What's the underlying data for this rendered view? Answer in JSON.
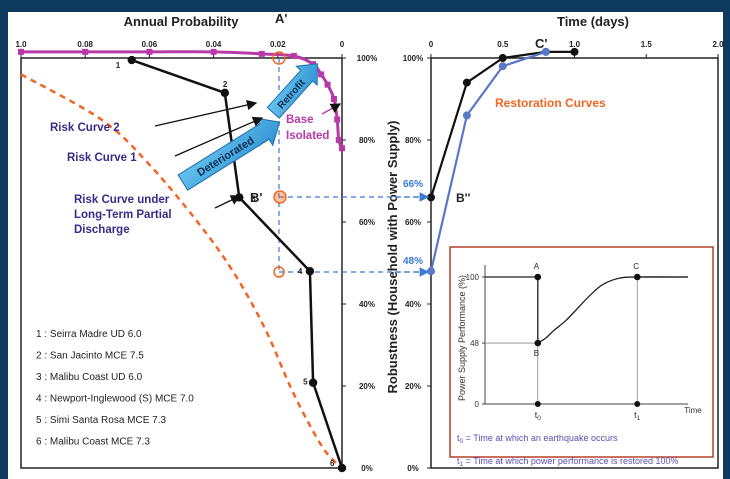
{
  "chart_data": [
    {
      "type": "line",
      "title": "Annual Probability",
      "xlabel": "Annual Probability",
      "ylabel": "Robustness (Household with Power Supply)",
      "x_reversed": true,
      "xlim": [
        0.1,
        0.0
      ],
      "ylim": [
        0,
        100
      ],
      "x_ticks": [
        "1.0",
        "0.08",
        "0.06",
        "0.04",
        "0.02",
        "0"
      ],
      "y_ticks": [
        "0%",
        "20%",
        "40%",
        "60%",
        "80%",
        "100%"
      ],
      "series": [
        {
          "name": "Risk Curve 1",
          "color": "#111111",
          "style": "solid",
          "points": [
            {
              "x": 0.0655,
              "y": 99.5,
              "label": "1"
            },
            {
              "x": 0.0365,
              "y": 91.5,
              "label": "2"
            },
            {
              "x": 0.032,
              "y": 66.0,
              "label": "3"
            },
            {
              "x": 0.01,
              "y": 48.0,
              "label": "4"
            },
            {
              "x": 0.009,
              "y": 20.8,
              "label": "5"
            },
            {
              "x": 0.0,
              "y": 0.0,
              "label": "6"
            }
          ]
        },
        {
          "name": "Risk Curve under Long-Term Partial Discharge",
          "color": "#f26522",
          "style": "dashed",
          "points": [
            {
              "x": 0.1,
              "y": 96.0
            },
            {
              "x": 0.075,
              "y": 85.0
            },
            {
              "x": 0.06,
              "y": 74.0
            },
            {
              "x": 0.045,
              "y": 60.0
            },
            {
              "x": 0.034,
              "y": 48.0
            },
            {
              "x": 0.024,
              "y": 34.0
            },
            {
              "x": 0.015,
              "y": 18.0
            },
            {
              "x": 0.006,
              "y": 5.0
            },
            {
              "x": 0.0,
              "y": 0.0
            }
          ]
        },
        {
          "name": "Base Isolated",
          "color": "#b83aa8",
          "style": "solid",
          "points": [
            {
              "x": 0.1,
              "y": 101.5
            },
            {
              "x": 0.08,
              "y": 101.5
            },
            {
              "x": 0.06,
              "y": 101.5
            },
            {
              "x": 0.04,
              "y": 101.5
            },
            {
              "x": 0.025,
              "y": 101.0
            },
            {
              "x": 0.015,
              "y": 100.5
            },
            {
              "x": 0.009,
              "y": 98.5
            },
            {
              "x": 0.0065,
              "y": 96.0
            },
            {
              "x": 0.0045,
              "y": 93.5
            },
            {
              "x": 0.0025,
              "y": 90.0
            },
            {
              "x": 0.0015,
              "y": 85.0
            },
            {
              "x": 0.001,
              "y": 80.0
            },
            {
              "x": 0.0,
              "y": 78.0
            }
          ]
        }
      ],
      "annotations": [
        "A'",
        "B'",
        "Risk Curve 2",
        "Risk Curve 1",
        "Deteriorated",
        "Retrofit",
        "Base Isolated",
        "Risk Curve under Long-Term Partial Discharge"
      ],
      "scenario_legend": [
        "1 : Seirra Madre UD 6.0",
        "2 : San Jacinto MCE 7.5",
        "3 : Malibu Coast UD 6.0",
        "4 : Newport-Inglewood (S) MCE 7.0",
        "5 : Simi Santa Rosa MCE 7.3",
        "6 : Malibu Coast MCE 7.3"
      ]
    },
    {
      "type": "line",
      "title": "Time (days)",
      "xlabel": "Time (days)",
      "ylabel": "",
      "xlim": [
        0,
        2.0
      ],
      "ylim": [
        0,
        100
      ],
      "x_ticks": [
        "0",
        "0.5",
        "1.0",
        "1.5",
        "2.0"
      ],
      "y_ticks": [
        "0%",
        "20%",
        "40%",
        "60%",
        "80%",
        "100%"
      ],
      "y_marks": [
        "66%",
        "48%"
      ],
      "title_overlay": "Restoration Curves",
      "labels": [
        "C'",
        "B''"
      ],
      "series": [
        {
          "name": "",
          "color": "#111111",
          "points": [
            {
              "x": 0.0,
              "y": 66
            },
            {
              "x": 0.25,
              "y": 94
            },
            {
              "x": 0.5,
              "y": 100
            },
            {
              "x": 0.8,
              "y": 101.5
            },
            {
              "x": 1.0,
              "y": 101.5
            }
          ]
        },
        {
          "name": "",
          "color": "#5a78c8",
          "points": [
            {
              "x": 0.0,
              "y": 48
            },
            {
              "x": 0.25,
              "y": 86
            },
            {
              "x": 0.5,
              "y": 98
            },
            {
              "x": 0.8,
              "y": 101.5
            }
          ]
        }
      ]
    },
    {
      "type": "line",
      "title": "",
      "ylabel": "Power Supply Performance (%)",
      "xlabel": "Time",
      "y_ticks": [
        "0",
        "48",
        "100"
      ],
      "x_ticks": [
        "t0",
        "t1"
      ],
      "points_labels": [
        "A",
        "B",
        "C"
      ],
      "series": [
        {
          "name": "",
          "color": "#222222",
          "points": [
            {
              "x": 0.0,
              "y": 100
            },
            {
              "x": 0.26,
              "y": 100
            },
            {
              "x": 0.26,
              "y": 48
            },
            {
              "x": 0.3,
              "y": 52
            },
            {
              "x": 0.34,
              "y": 58
            },
            {
              "x": 0.4,
              "y": 66
            },
            {
              "x": 0.46,
              "y": 76
            },
            {
              "x": 0.52,
              "y": 86
            },
            {
              "x": 0.58,
              "y": 94
            },
            {
              "x": 0.66,
              "y": 99
            },
            {
              "x": 0.75,
              "y": 100
            },
            {
              "x": 1.0,
              "y": 100
            }
          ]
        }
      ],
      "footnotes": [
        {
          "sym": "t",
          "sub": "0",
          "text": " = Time at which an earthquake occurs"
        },
        {
          "sym": "t",
          "sub": "1",
          "text": " = Time at which power performance is restored 100%"
        }
      ]
    }
  ]
}
